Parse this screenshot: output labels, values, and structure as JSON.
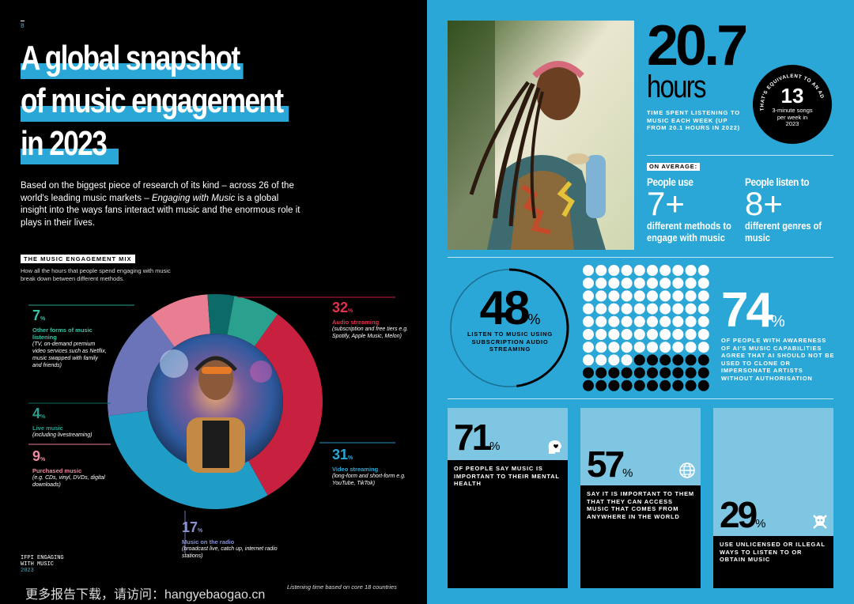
{
  "left": {
    "page_number": "8",
    "title_lines": [
      "A global snapshot",
      "of music engagement",
      "in 2023"
    ],
    "intro_before": "Based on the biggest piece of research of its kind – across 26 of the world's leading music markets – ",
    "intro_italic": "Engaging with Music",
    "intro_after": " is a global insight into the ways fans interact with music and the enormous role it plays in their lives.",
    "mix_heading": "THE MUSIC ENGAGEMENT MIX",
    "mix_subtitle": "How all the hours that people spend engaging with music break down between different methods.",
    "footer_line1": "IFPI ENGAGING",
    "footer_line2": "WITH MUSIC",
    "footer_year": "2023",
    "footnote": "Listening time based on core 18 countries",
    "watermark": "更多报告下载，请访问：hangyebaogao.cn"
  },
  "chart_data": {
    "type": "pie",
    "title": "THE MUSIC ENGAGEMENT MIX",
    "unit": "%",
    "slices": [
      {
        "name": "Audio streaming",
        "value": 32,
        "desc": "(subscription and free tiers e.g. Spotify, Apple Music, Melon)",
        "color": "#c8213f"
      },
      {
        "name": "Video streaming",
        "value": 31,
        "desc": "(long-form and short-form e.g. YouTube, TikTok)",
        "color": "#1f9dc6"
      },
      {
        "name": "Music on the radio",
        "value": 17,
        "desc": "(broadcast live, catch up, internet radio stations)",
        "color": "#6b74b8"
      },
      {
        "name": "Purchased music",
        "value": 9,
        "desc": "(e.g. CDs, vinyl, DVDs, digital downloads)",
        "color": "#e97e93"
      },
      {
        "name": "Live music",
        "value": 4,
        "desc": "(including livestreaming)",
        "color": "#0c6a68"
      },
      {
        "name": "Other forms of music listening",
        "value": 7,
        "desc": "(TV, on-demand premium video services such as Netflix, music swapped with family and friends)",
        "color": "#2aa08f"
      }
    ]
  },
  "right": {
    "hours_value": "20.7",
    "hours_unit": "hours",
    "hours_caption": "TIME SPENT LISTENING TO MUSIC EACH WEEK (UP FROM 20.1 HOURS IN 2022)",
    "badge_arc_text": "THAT'S EQUIVALENT TO AN ADDITIONAL",
    "badge_value": "13",
    "badge_caption": "3-minute songs per week in 2023",
    "on_average_label": "ON AVERAGE:",
    "methods_intro": "People use",
    "methods_value": "7+",
    "methods_caption": "different methods to engage with music",
    "genres_intro": "People listen to",
    "genres_value": "8+",
    "genres_caption": "different genres of music",
    "sub_value": "48",
    "sub_caption": "LISTEN TO MUSIC USING SUBSCRIPTION AUDIO STREAMING",
    "ai_value": "74",
    "ai_fraction": 0.74,
    "ai_caption": "OF PEOPLE WITH AWARENESS OF AI'S MUSIC CAPABILITIES AGREE THAT AI SHOULD NOT BE USED TO CLONE OR IMPERSONATE ARTISTS WITHOUT AUTHORISATION",
    "mental_value": "71",
    "mental_caption": "OF PEOPLE SAY MUSIC IS IMPORTANT TO THEIR MENTAL HEALTH",
    "mental_icon": "head-heart-icon",
    "access_value": "57",
    "access_caption": "SAY IT IS IMPORTANT TO THEM THAT THEY CAN ACCESS MUSIC THAT COMES FROM ANYWHERE IN THE WORLD",
    "access_icon": "globe-icon",
    "illegal_value": "29",
    "illegal_caption": "USE UNLICENSED OR ILLEGAL WAYS TO LISTEN TO OR OBTAIN MUSIC",
    "illegal_icon": "skull-crossbones-icon",
    "pct_symbol": "%"
  }
}
